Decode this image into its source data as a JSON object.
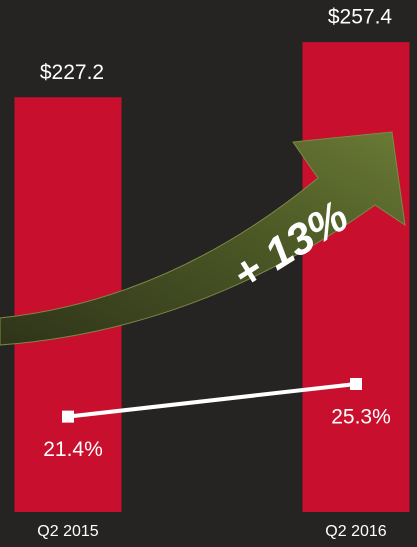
{
  "chart_data": {
    "type": "bar",
    "categories": [
      "Q2 2015",
      "Q2 2016"
    ],
    "series": [
      {
        "type": "bar",
        "color": "#c8102e",
        "values": [
          227.2,
          257.4
        ],
        "value_labels": [
          "$227.2",
          "$257.4"
        ]
      },
      {
        "type": "line",
        "axis": "y2",
        "color": "#ffffff",
        "values": [
          21.4,
          25.3
        ],
        "value_labels": [
          "21.4%",
          "25.3%"
        ]
      }
    ],
    "ylim": [
      0,
      275
    ],
    "y2lim": [
      10,
      70
    ],
    "annotation": "+ 13%"
  }
}
